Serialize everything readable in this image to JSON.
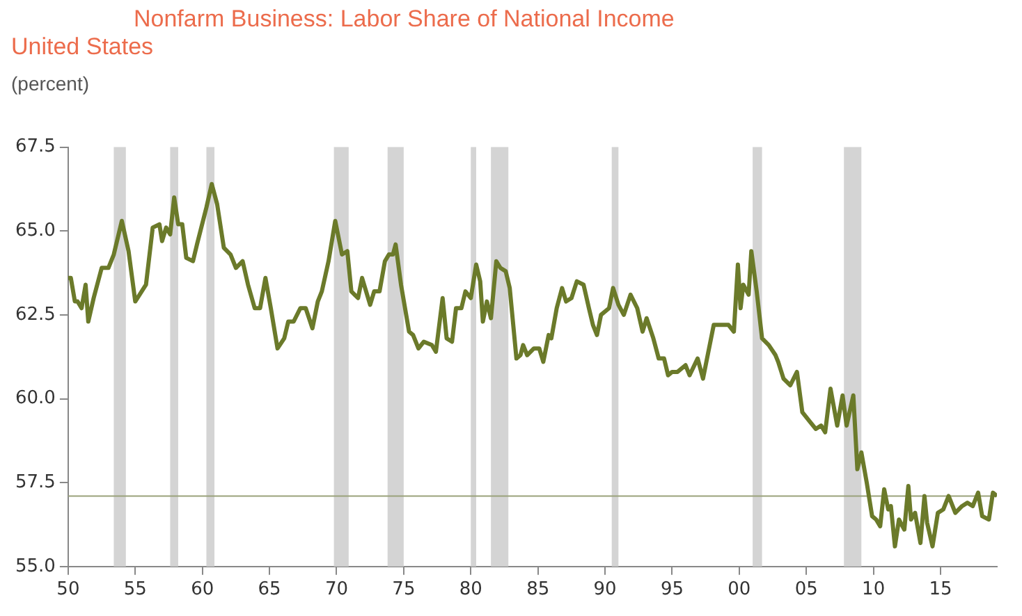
{
  "chart_data": {
    "type": "line",
    "title": "Nonfarm Business: Labor Share of National Income",
    "subtitle": "United States",
    "ylabel": "(percent)",
    "x": [
      1950.0,
      1950.2,
      1950.5,
      1950.7,
      1951.0,
      1951.3,
      1951.5,
      1951.9,
      1952.5,
      1953.0,
      1953.4,
      1954.0,
      1954.5,
      1955.0,
      1955.8,
      1956.3,
      1956.8,
      1957.0,
      1957.3,
      1957.6,
      1957.9,
      1958.2,
      1958.5,
      1958.8,
      1959.3,
      1959.6,
      1960.3,
      1960.7,
      1961.1,
      1961.6,
      1962.1,
      1962.5,
      1963.0,
      1963.4,
      1963.9,
      1964.3,
      1964.7,
      1965.1,
      1965.6,
      1966.1,
      1966.4,
      1966.8,
      1967.3,
      1967.7,
      1968.2,
      1968.6,
      1968.9,
      1969.4,
      1969.9,
      1970.4,
      1970.8,
      1971.1,
      1971.6,
      1971.9,
      1972.5,
      1972.8,
      1973.2,
      1973.6,
      1973.9,
      1974.2,
      1974.4,
      1974.8,
      1975.4,
      1975.7,
      1976.1,
      1976.5,
      1977.1,
      1977.4,
      1977.9,
      1978.2,
      1978.6,
      1978.9,
      1979.3,
      1979.6,
      1980.0,
      1980.4,
      1980.7,
      1980.9,
      1981.2,
      1981.5,
      1981.9,
      1982.2,
      1982.6,
      1982.9,
      1983.4,
      1983.7,
      1983.9,
      1984.2,
      1984.7,
      1985.1,
      1985.4,
      1985.8,
      1986.0,
      1986.4,
      1986.8,
      1987.1,
      1987.5,
      1987.9,
      1988.4,
      1988.8,
      1989.1,
      1989.4,
      1989.7,
      1990.3,
      1990.6,
      1991.0,
      1991.4,
      1991.9,
      1992.4,
      1992.8,
      1993.1,
      1993.6,
      1994.0,
      1994.4,
      1994.7,
      1995.0,
      1995.4,
      1996.0,
      1996.3,
      1996.9,
      1997.3,
      1998.1,
      1998.7,
      1999.2,
      1999.6,
      1999.9,
      2000.1,
      2000.3,
      2000.7,
      2000.9,
      2001.3,
      2001.7,
      2002.2,
      2002.7,
      2002.9,
      2003.3,
      2003.8,
      2004.3,
      2004.7,
      2005.3,
      2005.7,
      2006.1,
      2006.4,
      2006.8,
      2007.3,
      2007.7,
      2008.0,
      2008.5,
      2008.8,
      2009.1,
      2009.5,
      2009.9,
      2010.2,
      2010.5,
      2010.8,
      2011.1,
      2011.3,
      2011.6,
      2011.9,
      2012.3,
      2012.6,
      2012.8,
      2013.1,
      2013.5,
      2013.8,
      2014.0,
      2014.4,
      2014.8,
      2015.2,
      2015.6,
      2016.1,
      2016.6,
      2017.0,
      2017.4,
      2017.8,
      2018.1,
      2018.6,
      2018.9,
      2019.2
    ],
    "series": [
      {
        "color": "#6b7a2a",
        "values": [
          63.6,
          63.6,
          62.9,
          62.9,
          62.7,
          63.4,
          62.3,
          63.0,
          63.9,
          63.9,
          64.3,
          65.3,
          64.4,
          62.9,
          63.4,
          65.1,
          65.2,
          64.7,
          65.1,
          64.9,
          66.0,
          65.2,
          65.2,
          64.2,
          64.1,
          64.6,
          65.7,
          66.4,
          65.8,
          64.5,
          64.3,
          63.9,
          64.1,
          63.4,
          62.7,
          62.7,
          63.6,
          62.7,
          61.5,
          61.8,
          62.3,
          62.3,
          62.7,
          62.7,
          62.1,
          62.9,
          63.2,
          64.1,
          65.3,
          64.3,
          64.4,
          63.2,
          63.0,
          63.6,
          62.8,
          63.2,
          63.2,
          64.1,
          64.3,
          64.3,
          64.6,
          63.4,
          62.0,
          61.9,
          61.5,
          61.7,
          61.6,
          61.4,
          63.0,
          61.8,
          61.7,
          62.7,
          62.7,
          63.2,
          63.0,
          64.0,
          63.5,
          62.3,
          62.9,
          62.4,
          64.1,
          63.9,
          63.8,
          63.3,
          61.2,
          61.3,
          61.6,
          61.3,
          61.5,
          61.5,
          61.1,
          61.9,
          61.8,
          62.7,
          63.3,
          62.9,
          63.0,
          63.5,
          63.4,
          62.7,
          62.2,
          61.9,
          62.5,
          62.7,
          63.3,
          62.8,
          62.5,
          63.1,
          62.7,
          62.0,
          62.4,
          61.8,
          61.2,
          61.2,
          60.7,
          60.8,
          60.8,
          61.0,
          60.7,
          61.2,
          60.6,
          62.2,
          62.2,
          62.2,
          62.0,
          64.0,
          62.7,
          63.4,
          63.1,
          64.4,
          63.2,
          61.8,
          61.6,
          61.3,
          61.1,
          60.6,
          60.4,
          60.8,
          59.6,
          59.3,
          59.1,
          59.2,
          59.0,
          60.3,
          59.2,
          60.1,
          59.2,
          60.1,
          57.9,
          58.4,
          57.5,
          56.5,
          56.4,
          56.2,
          57.3,
          56.7,
          56.8,
          55.6,
          56.4,
          56.1,
          57.4,
          56.4,
          56.6,
          55.7,
          57.1,
          56.3,
          55.6,
          56.6,
          56.7,
          57.1,
          56.6,
          56.8,
          56.9,
          56.8,
          57.2,
          56.5,
          56.4,
          57.2,
          57.1
        ]
      }
    ],
    "xlim": [
      1950,
      2019.2
    ],
    "xticks": [
      {
        "value": 1950,
        "label": "50"
      },
      {
        "value": 1955,
        "label": "55"
      },
      {
        "value": 1960,
        "label": "60"
      },
      {
        "value": 1965,
        "label": "65"
      },
      {
        "value": 1970,
        "label": "70"
      },
      {
        "value": 1975,
        "label": "75"
      },
      {
        "value": 1980,
        "label": "80"
      },
      {
        "value": 1985,
        "label": "85"
      },
      {
        "value": 1990,
        "label": "90"
      },
      {
        "value": 1995,
        "label": "95"
      },
      {
        "value": 2000,
        "label": "00"
      },
      {
        "value": 2005,
        "label": "05"
      },
      {
        "value": 2010,
        "label": "10"
      },
      {
        "value": 2015,
        "label": "15"
      }
    ],
    "ylim": [
      55,
      67.5
    ],
    "yticks": [
      {
        "value": 55,
        "label": "55.0"
      },
      {
        "value": 57.5,
        "label": "57.5"
      },
      {
        "value": 60,
        "label": "60.0"
      },
      {
        "value": 62.5,
        "label": "62.5"
      },
      {
        "value": 65,
        "label": "65.0"
      },
      {
        "value": 67.5,
        "label": "67.5"
      }
    ],
    "ref_lines": [
      {
        "axis": "y",
        "value": 57.1,
        "color": "#9aa27a"
      }
    ],
    "bands": [
      {
        "axis": "x",
        "from": 1953.4,
        "to": 1954.3,
        "color": "#d4d4d4"
      },
      {
        "axis": "x",
        "from": 1957.6,
        "to": 1958.2,
        "color": "#d4d4d4"
      },
      {
        "axis": "x",
        "from": 1960.3,
        "to": 1960.9,
        "color": "#d4d4d4"
      },
      {
        "axis": "x",
        "from": 1969.8,
        "to": 1970.9,
        "color": "#d4d4d4"
      },
      {
        "axis": "x",
        "from": 1973.8,
        "to": 1975.0,
        "color": "#d4d4d4"
      },
      {
        "axis": "x",
        "from": 1980.0,
        "to": 1980.4,
        "color": "#d4d4d4"
      },
      {
        "axis": "x",
        "from": 1981.5,
        "to": 1982.8,
        "color": "#d4d4d4"
      },
      {
        "axis": "x",
        "from": 1990.5,
        "to": 1991.0,
        "color": "#d4d4d4"
      },
      {
        "axis": "x",
        "from": 2001.0,
        "to": 2001.7,
        "color": "#d4d4d4"
      },
      {
        "axis": "x",
        "from": 2007.8,
        "to": 2009.1,
        "color": "#d4d4d4"
      }
    ],
    "grid": false,
    "legend": false,
    "marker": "none",
    "line_style": "solid"
  }
}
